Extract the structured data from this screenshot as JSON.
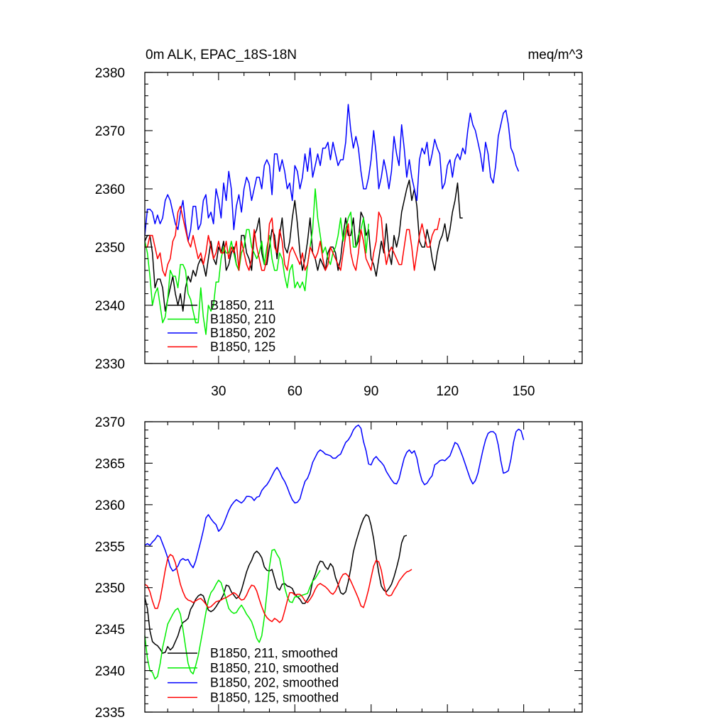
{
  "chart_data": [
    {
      "type": "line",
      "title": "0m ALK, EPAC_18S-18N",
      "units_label": "meq/m^3",
      "xlim": [
        1,
        173
      ],
      "ylim": [
        2330,
        2380
      ],
      "xticks": [
        30,
        60,
        90,
        120,
        150
      ],
      "xticks_labeled": true,
      "yticks": [
        2330,
        2340,
        2350,
        2360,
        2370,
        2380
      ],
      "legend_position": "bottom-left",
      "series": [
        {
          "name": "B1850, 211",
          "color": "#000000",
          "values": [
            2351,
            2352,
            2352,
            2349,
            2343,
            2344.5,
            2344.5,
            2343,
            2339,
            2341,
            2343,
            2345,
            2342,
            2340,
            2342,
            2339,
            2343,
            2345,
            2344,
            2346,
            2345,
            2347,
            2348,
            2347,
            2345,
            2348,
            2351,
            2348,
            2347,
            2350,
            2349,
            2351,
            2346,
            2347,
            2349,
            2350,
            2347,
            2346,
            2352,
            2352,
            2349,
            2348,
            2346,
            2352,
            2353,
            2355,
            2349,
            2347,
            2347,
            2350,
            2353,
            2352,
            2348,
            2352,
            2355,
            2350,
            2349,
            2351,
            2355,
            2358,
            2354,
            2349,
            2346,
            2348,
            2351,
            2355,
            2349,
            2348,
            2346,
            2348,
            2347,
            2346,
            2349,
            2350,
            2350,
            2349,
            2346,
            2348,
            2352,
            2355,
            2352,
            2352,
            2355,
            2350,
            2351,
            2356,
            2355,
            2352,
            2353,
            2348,
            2347,
            2345,
            2348,
            2351,
            2349,
            2354,
            2349,
            2347,
            2352,
            2350,
            2352,
            2356,
            2358,
            2360,
            2361.5,
            2358,
            2360,
            2357,
            2351,
            2350,
            2350,
            2353,
            2351,
            2348,
            2346,
            2349,
            2351,
            2352,
            2354,
            2351,
            2353,
            2356,
            2358,
            2361,
            2355,
            2355
          ]
        },
        {
          "name": "B1850, 210",
          "color": "#00ee00",
          "values": [
            2351,
            2349,
            2345,
            2340,
            2342,
            2343,
            2340,
            2337,
            2338,
            2341,
            2346,
            2345,
            2345,
            2343,
            2347,
            2347,
            2346,
            2342,
            2341,
            2339,
            2337,
            2337,
            2343,
            2338,
            2335,
            2340,
            2339,
            2340,
            2344,
            2344,
            2348,
            2350,
            2349,
            2349,
            2351,
            2349,
            2347,
            2346,
            2349,
            2350,
            2353,
            2353,
            2350,
            2349,
            2348,
            2349,
            2351,
            2347,
            2350,
            2352,
            2348,
            2346,
            2346,
            2349,
            2348,
            2345,
            2343,
            2346,
            2347,
            2343,
            2344,
            2343,
            2344,
            2342.5,
            2347,
            2350,
            2353,
            2360,
            2355,
            2352,
            2349,
            2350,
            2348,
            2347,
            2349,
            2350,
            2352,
            2355,
            2351,
            2353,
            2355,
            2356,
            2350,
            2350,
            2352,
            2353,
            2355,
            2349,
            2354
          ]
        },
        {
          "name": "B1850, 202",
          "color": "#0000ff",
          "values": [
            2352,
            2356.5,
            2356.5,
            2356,
            2354,
            2355.5,
            2354,
            2355,
            2358,
            2359,
            2358,
            2356,
            2354,
            2353,
            2356,
            2358,
            2354,
            2351,
            2353,
            2357,
            2357,
            2353,
            2354,
            2358,
            2359,
            2355,
            2356,
            2354,
            2360,
            2358,
            2355,
            2361,
            2358,
            2363,
            2360,
            2353,
            2357,
            2359,
            2356,
            2360,
            2362,
            2361,
            2358,
            2360,
            2362,
            2362,
            2360,
            2364,
            2365,
            2364,
            2359,
            2366,
            2366,
            2363,
            2365,
            2363,
            2360,
            2361,
            2358,
            2364,
            2363,
            2360,
            2362,
            2366,
            2363,
            2367,
            2362,
            2364,
            2366,
            2364,
            2367,
            2367,
            2368,
            2365,
            2368,
            2366,
            2364,
            2365,
            2365,
            2368,
            2374.5,
            2370,
            2367,
            2369,
            2367,
            2363,
            2360,
            2360,
            2362,
            2365,
            2370,
            2366,
            2360,
            2362,
            2365,
            2363,
            2360,
            2363,
            2369,
            2366,
            2364,
            2371,
            2367,
            2362,
            2365,
            2362,
            2360,
            2358,
            2365,
            2367,
            2366,
            2368,
            2364,
            2366,
            2368.5,
            2367,
            2366,
            2360,
            2361,
            2364,
            2365,
            2362,
            2365,
            2366,
            2365,
            2367,
            2366,
            2370,
            2373,
            2371,
            2370,
            2368,
            2366,
            2363,
            2368,
            2366,
            2362,
            2361,
            2364,
            2369,
            2371,
            2373,
            2373.5,
            2371,
            2367,
            2366,
            2364,
            2363
          ]
        },
        {
          "name": "B1850, 125",
          "color": "#ff0000",
          "values": [
            2350,
            2350,
            2352,
            2352,
            2350,
            2348,
            2349,
            2346,
            2345,
            2347,
            2348,
            2351,
            2352,
            2356,
            2357,
            2355,
            2353,
            2351,
            2350,
            2352,
            2350,
            2348,
            2349,
            2347,
            2349,
            2352,
            2350,
            2348,
            2349,
            2351,
            2349,
            2349,
            2351,
            2348,
            2350,
            2349,
            2351,
            2346,
            2351,
            2349,
            2347,
            2346,
            2348,
            2353,
            2350,
            2348,
            2346,
            2346,
            2348,
            2354,
            2355,
            2350,
            2349,
            2353,
            2351,
            2347,
            2346,
            2349,
            2350,
            2349,
            2348,
            2347,
            2349,
            2346,
            2347,
            2350,
            2349,
            2348,
            2349,
            2351,
            2348,
            2346,
            2347,
            2350,
            2349,
            2348,
            2347,
            2346,
            2349,
            2352,
            2354,
            2349,
            2347,
            2346,
            2349,
            2353,
            2351,
            2348,
            2347,
            2346,
            2349,
            2351,
            2356,
            2355,
            2350,
            2347,
            2349,
            2350,
            2349,
            2348,
            2347,
            2347,
            2350,
            2353,
            2353,
            2350,
            2346,
            2349,
            2352,
            2354,
            2352,
            2350,
            2350,
            2352,
            2353,
            2353,
            2355
          ]
        }
      ]
    },
    {
      "type": "line",
      "xlim": [
        1,
        173
      ],
      "ylim": [
        2335,
        2370
      ],
      "xticks": [
        30,
        60,
        90,
        120,
        150
      ],
      "xticks_labeled": false,
      "yticks": [
        2335,
        2340,
        2345,
        2350,
        2355,
        2360,
        2365,
        2370
      ],
      "legend_position": "bottom-left",
      "series": [
        {
          "name": "B1850, 211, smoothed",
          "color": "#000000",
          "values": [
            2348.8,
            2347.5,
            2344.8,
            2343.5,
            2343.2,
            2343,
            2342.6,
            2342.1,
            2342.2,
            2342.9,
            2342.5,
            2342.8,
            2343.5,
            2344.2,
            2345.2,
            2345.8,
            2346,
            2346.3,
            2347.4,
            2347.9,
            2348.6,
            2349,
            2349.2,
            2349,
            2348.1,
            2347.3,
            2347.1,
            2347.3,
            2347.7,
            2348.2,
            2348.6,
            2349.2,
            2350.3,
            2350.2,
            2349.5,
            2349.1,
            2348.7,
            2348.9,
            2349.7,
            2350.8,
            2351.9,
            2352.7,
            2353.3,
            2354.1,
            2354.4,
            2354.1,
            2353.6,
            2352.5,
            2352.1,
            2352,
            2352.2,
            2351.1,
            2350,
            2349.7,
            2350.4,
            2350.5,
            2350.2,
            2350.1,
            2349.9,
            2349.2,
            2348.9,
            2348.6,
            2348.1,
            2348.1,
            2348.6,
            2349.2,
            2350.8,
            2351.6,
            2352.6,
            2353.2,
            2353.1,
            2352.5,
            2352.2,
            2352.9,
            2352.5,
            2351.2,
            2350.4,
            2349.4,
            2349.2,
            2349.5,
            2350.7,
            2352.3,
            2354.3,
            2355.5,
            2356.5,
            2357.5,
            2358.3,
            2358.8,
            2358.6,
            2357.5,
            2355.9,
            2353.7,
            2351.8,
            2350.2,
            2349.7,
            2349.5,
            2349.9,
            2350.4,
            2351.3,
            2352.4,
            2353.6,
            2355.4,
            2356.2,
            2356.3
          ]
        },
        {
          "name": "B1850, 210, smoothed",
          "color": "#00ee00",
          "values": [
            2344.2,
            2341.5,
            2340,
            2339.8,
            2339,
            2339.3,
            2340.8,
            2342.8,
            2344.2,
            2345.6,
            2346.2,
            2346.8,
            2347.3,
            2347.5,
            2346.8,
            2345,
            2342.9,
            2340.9,
            2339.9,
            2339.6,
            2340.6,
            2341.8,
            2343.5,
            2345.2,
            2347,
            2348.5,
            2349.4,
            2349.8,
            2350.4,
            2350.9,
            2350.6,
            2349.6,
            2348.6,
            2347.5,
            2347.1,
            2346.9,
            2347,
            2347.5,
            2347.9,
            2347.4,
            2346.8,
            2346.4,
            2345.9,
            2345,
            2343.9,
            2343.4,
            2344.2,
            2346.4,
            2349.3,
            2352.5,
            2354.5,
            2354.6,
            2354,
            2353.5,
            2352,
            2350,
            2348.9,
            2348.3,
            2348.2,
            2348.9,
            2348.9,
            2349,
            2349.1,
            2349.2,
            2349.3,
            2350.1,
            2350.8,
            2351.1,
            2351.6,
            2352.1
          ]
        },
        {
          "name": "B1850, 202, smoothed",
          "color": "#0000ff",
          "values": [
            2355.1,
            2355.3,
            2355.1,
            2355.5,
            2355.8,
            2356.3,
            2356.1,
            2355.3,
            2354.5,
            2353.6,
            2352.5,
            2352,
            2352.2,
            2352.6,
            2353.3,
            2353.5,
            2353.3,
            2353.4,
            2352.8,
            2352.4,
            2353.2,
            2354.4,
            2355.6,
            2356.9,
            2358.4,
            2358.8,
            2358.3,
            2357.9,
            2357.6,
            2356.8,
            2357.1,
            2357.7,
            2358.5,
            2359.3,
            2359.9,
            2360.3,
            2360.6,
            2360.4,
            2360.2,
            2360.5,
            2361,
            2361,
            2360.9,
            2360.5,
            2360.9,
            2361,
            2361.7,
            2362.1,
            2362.4,
            2362.9,
            2363.5,
            2364.1,
            2364.5,
            2364,
            2363.3,
            2362.8,
            2362.1,
            2361.3,
            2360.6,
            2360.2,
            2360.3,
            2360.7,
            2361.8,
            2362.8,
            2363.2,
            2364,
            2365.1,
            2365.7,
            2366.3,
            2366.6,
            2366.4,
            2366.1,
            2366,
            2365.9,
            2365.6,
            2365.6,
            2365.9,
            2366.1,
            2366.8,
            2367.5,
            2367.8,
            2368.3,
            2369,
            2369.4,
            2369.6,
            2369.2,
            2367.6,
            2366.5,
            2364.9,
            2364.8,
            2365.5,
            2365.8,
            2365.4,
            2365.1,
            2364.7,
            2364,
            2363.5,
            2363,
            2362.6,
            2362.5,
            2363.1,
            2364.4,
            2365.6,
            2366.3,
            2366.6,
            2366.2,
            2366.5,
            2365.6,
            2364,
            2362.9,
            2362.4,
            2362.6,
            2363.1,
            2363.5,
            2364.8,
            2365,
            2365.3,
            2365.4,
            2365.3,
            2365.6,
            2365.9,
            2366.7,
            2367.5,
            2367.3,
            2366.6,
            2365.8,
            2364.9,
            2364,
            2363.1,
            2362.5,
            2362.9,
            2363.8,
            2365.2,
            2366.6,
            2367.8,
            2368.6,
            2368.8,
            2368.8,
            2368.5,
            2367.2,
            2365.3,
            2363.8,
            2363.9,
            2364.1,
            2365.5,
            2367.5,
            2368.8,
            2369.1,
            2368.9,
            2367.8
          ]
        },
        {
          "name": "B1850, 125, smoothed",
          "color": "#ff0000",
          "values": [
            2350.4,
            2350.2,
            2349.5,
            2348.4,
            2347.5,
            2347.5,
            2348.6,
            2350.3,
            2352.1,
            2353.5,
            2354,
            2353.8,
            2353,
            2351.7,
            2350.4,
            2349.5,
            2348.8,
            2348.5,
            2348.4,
            2348.2,
            2348.4,
            2348.6,
            2348.7,
            2348.4,
            2348,
            2347.6,
            2347.7,
            2348,
            2348.3,
            2348.4,
            2348.5,
            2348.7,
            2348.8,
            2349,
            2349.2,
            2349.4,
            2349.2,
            2348.8,
            2348.5,
            2348.6,
            2349.1,
            2349.8,
            2350.3,
            2350.2,
            2349.6,
            2348.6,
            2347.7,
            2346.9,
            2346.4,
            2346.1,
            2345.9,
            2346.3,
            2346.1,
            2345.8,
            2346.1,
            2347.2,
            2348.4,
            2349.4,
            2349.4,
            2349.1,
            2349.2,
            2349.2,
            2348.9,
            2348.4,
            2348.2,
            2348.6,
            2349.1,
            2349.8,
            2350.3,
            2350.5,
            2350.3,
            2350.1,
            2349.8,
            2349.4,
            2349.2,
            2349.6,
            2350.3,
            2351.1,
            2351.6,
            2351.7,
            2351.4,
            2350.8,
            2350.1,
            2349.4,
            2348.7,
            2347.8,
            2347.6,
            2348.6,
            2349.8,
            2351.2,
            2352.6,
            2353.3,
            2353.1,
            2352.1,
            2350.4,
            2349.2,
            2349,
            2349.1,
            2349.7,
            2350.2,
            2350.8,
            2351.2,
            2351.6,
            2351.9,
            2352,
            2352.2
          ]
        }
      ]
    }
  ]
}
